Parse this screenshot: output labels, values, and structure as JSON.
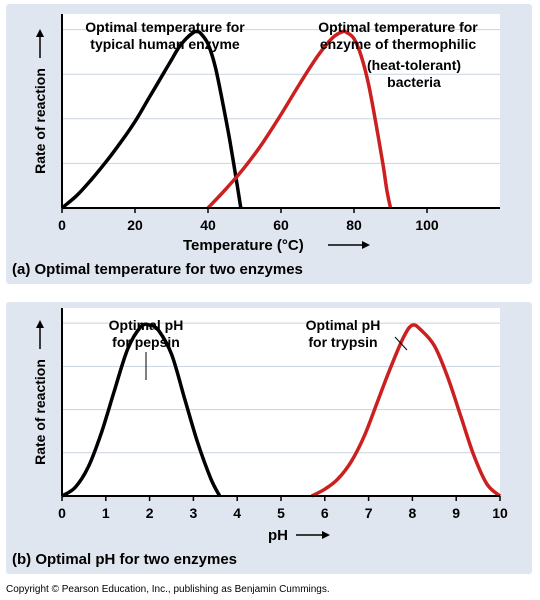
{
  "chart_data": [
    {
      "type": "line",
      "caption": "(a) Optimal temperature for two enzymes",
      "xlabel": "Temperature (°C)",
      "ylabel": "Rate of reaction",
      "xlim": [
        0,
        120
      ],
      "ylim": [
        0,
        1.1
      ],
      "x_ticks": [
        0,
        20,
        40,
        60,
        80,
        100
      ],
      "y_ticks_unlabeled": 4,
      "grid": "horizontal",
      "series": [
        {
          "color": "#000000",
          "x": [
            0,
            4,
            8,
            12,
            16,
            20,
            24,
            28,
            30,
            32,
            34,
            36,
            37,
            38,
            40,
            42,
            44,
            46,
            48,
            49
          ],
          "y": [
            0,
            0.07,
            0.16,
            0.26,
            0.37,
            0.49,
            0.63,
            0.77,
            0.84,
            0.91,
            0.96,
            0.995,
            1.0,
            0.99,
            0.93,
            0.8,
            0.6,
            0.38,
            0.13,
            0
          ]
        },
        {
          "color": "#cc1f1f",
          "x": [
            40,
            45,
            50,
            55,
            60,
            65,
            70,
            73,
            75,
            77,
            78,
            80,
            82,
            84,
            86,
            88,
            89,
            90
          ],
          "y": [
            0,
            0.11,
            0.23,
            0.37,
            0.53,
            0.7,
            0.86,
            0.94,
            0.98,
            1.0,
            0.995,
            0.96,
            0.86,
            0.7,
            0.48,
            0.24,
            0.1,
            0
          ]
        }
      ],
      "annotations": [
        {
          "lines": [
            "Optimal temperature for",
            "typical human enzyme"
          ]
        },
        {
          "lines": [
            "Optimal temperature for",
            "enzyme of thermophilic",
            "(heat-tolerant)",
            "bacteria"
          ]
        }
      ]
    },
    {
      "type": "line",
      "caption": "(b) Optimal pH for two enzymes",
      "xlabel": "pH",
      "ylabel": "Rate of reaction",
      "xlim": [
        0,
        10
      ],
      "ylim": [
        0,
        1.1
      ],
      "x_ticks": [
        0,
        1,
        2,
        3,
        4,
        5,
        6,
        7,
        8,
        9,
        10
      ],
      "y_ticks_unlabeled": 4,
      "grid": "horizontal",
      "series": [
        {
          "color": "#000000",
          "x": [
            0,
            0.3,
            0.6,
            0.9,
            1.2,
            1.5,
            1.8,
            2.0,
            2.2,
            2.5,
            2.8,
            3.1,
            3.4,
            3.6
          ],
          "y": [
            0,
            0.05,
            0.17,
            0.37,
            0.62,
            0.86,
            0.99,
            1.0,
            0.97,
            0.83,
            0.57,
            0.31,
            0.1,
            0
          ]
        },
        {
          "color": "#cc1f1f",
          "x": [
            5.7,
            6.0,
            6.3,
            6.6,
            6.9,
            7.2,
            7.5,
            7.8,
            8.0,
            8.2,
            8.5,
            8.8,
            9.1,
            9.4,
            9.7,
            10.0
          ],
          "y": [
            0,
            0.04,
            0.1,
            0.2,
            0.35,
            0.55,
            0.75,
            0.93,
            1.0,
            0.97,
            0.88,
            0.7,
            0.47,
            0.24,
            0.07,
            0
          ]
        }
      ],
      "annotations": [
        {
          "lines": [
            "Optimal pH",
            "for pepsin"
          ]
        },
        {
          "lines": [
            "Optimal pH",
            "for trypsin"
          ]
        }
      ]
    }
  ],
  "footer": {
    "copyright": "Copyright © Pearson Education, Inc., publishing as Benjamin Cummings."
  }
}
